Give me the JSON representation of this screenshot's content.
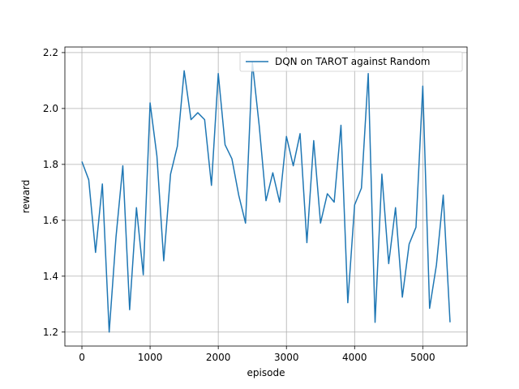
{
  "chart_data": {
    "type": "line",
    "title": "",
    "xlabel": "episode",
    "ylabel": "reward",
    "xlim": [
      -250,
      5650
    ],
    "ylim": [
      1.15,
      2.22
    ],
    "xticks": [
      0,
      1000,
      2000,
      3000,
      4000,
      5000
    ],
    "yticks": [
      1.2,
      1.4,
      1.6,
      1.8,
      2.0,
      2.2
    ],
    "ytick_labels": [
      "1.2",
      "1.4",
      "1.6",
      "1.8",
      "2.0",
      "2.2"
    ],
    "grid": true,
    "legend": "top-right",
    "colors": {
      "series": "#1f77b4"
    },
    "series": [
      {
        "name": "DQN on TAROT against Random",
        "x": [
          0,
          100,
          200,
          300,
          400,
          500,
          600,
          700,
          800,
          900,
          1000,
          1100,
          1200,
          1300,
          1400,
          1500,
          1600,
          1700,
          1800,
          1900,
          2000,
          2100,
          2200,
          2300,
          2400,
          2500,
          2600,
          2700,
          2800,
          2900,
          3000,
          3100,
          3200,
          3300,
          3400,
          3500,
          3600,
          3700,
          3800,
          3900,
          4000,
          4100,
          4200,
          4300,
          4400,
          4500,
          4600,
          4700,
          4800,
          4900,
          5000,
          5100,
          5200,
          5300,
          5400
        ],
        "y": [
          1.81,
          1.745,
          1.485,
          1.73,
          1.2,
          1.54,
          1.795,
          1.28,
          1.645,
          1.405,
          2.02,
          1.83,
          1.455,
          1.765,
          1.865,
          2.135,
          1.96,
          1.985,
          1.96,
          1.725,
          2.125,
          1.87,
          1.82,
          1.69,
          1.59,
          2.165,
          1.94,
          1.67,
          1.77,
          1.665,
          1.9,
          1.795,
          1.91,
          1.52,
          1.885,
          1.59,
          1.695,
          1.665,
          1.94,
          1.305,
          1.655,
          1.715,
          2.125,
          1.235,
          1.765,
          1.445,
          1.645,
          1.325,
          1.515,
          1.575,
          2.08,
          1.285,
          1.44,
          1.69,
          1.235
        ]
      }
    ]
  }
}
